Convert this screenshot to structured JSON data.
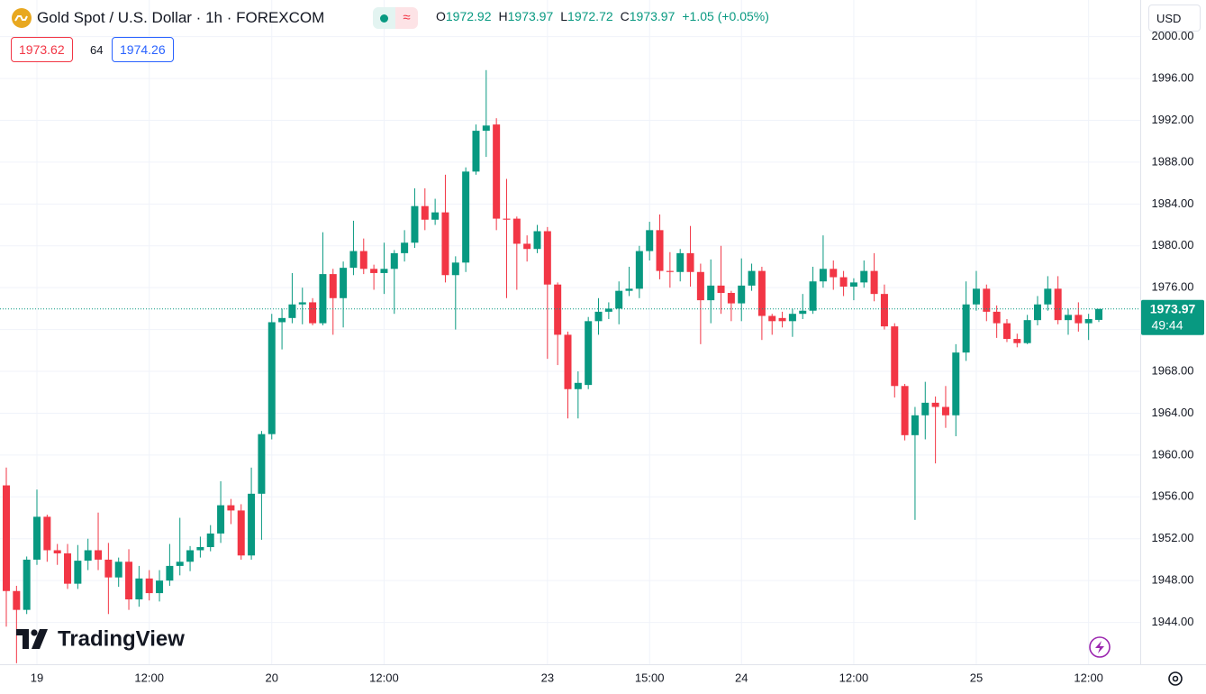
{
  "header": {
    "symbol": "Gold Spot / U.S. Dollar · 1h · FOREXCOM",
    "ohlc": {
      "open_label": "O",
      "open": "1972.92",
      "high_label": "H",
      "high": "1973.97",
      "low_label": "L",
      "low": "1972.72",
      "close_label": "C",
      "close": "1973.97",
      "change": "+1.05 (+0.05%)"
    },
    "bid": "1973.62",
    "spread": "64",
    "ask": "1974.26",
    "currency": "USD"
  },
  "chart_data": {
    "type": "candlestick",
    "up_color": "#089981",
    "down_color": "#f23645",
    "categories": [
      null,
      null,
      null,
      "19",
      null,
      null,
      null,
      null,
      null,
      null,
      null,
      null,
      null,
      null,
      "12:00",
      null,
      null,
      null,
      null,
      null,
      null,
      null,
      null,
      null,
      null,
      null,
      "20",
      null,
      null,
      null,
      null,
      null,
      null,
      null,
      null,
      null,
      null,
      "12:00",
      null,
      null,
      null,
      null,
      null,
      null,
      null,
      null,
      null,
      null,
      null,
      null,
      null,
      null,
      null,
      "23",
      null,
      null,
      null,
      null,
      null,
      null,
      null,
      null,
      null,
      "15:00",
      null,
      null,
      null,
      null,
      null,
      null,
      null,
      null,
      "24",
      null,
      null,
      null,
      null,
      null,
      null,
      null,
      null,
      null,
      null,
      "12:00",
      null,
      null,
      null,
      null,
      null,
      null,
      null,
      null,
      null,
      null,
      null,
      "25",
      null,
      null,
      null,
      null,
      null,
      null,
      null,
      null,
      null,
      null,
      "12:00",
      null
    ],
    "open": [
      1957.1,
      1947.0,
      1945.2,
      1950.0,
      1954.1,
      1950.9,
      1950.6,
      1947.7,
      1949.9,
      1950.9,
      1950.0,
      1948.3,
      1949.8,
      1946.2,
      1948.2,
      1946.8,
      1948.0,
      1949.4,
      1949.8,
      1950.9,
      1951.2,
      1952.5,
      1955.2,
      1954.7,
      1950.4,
      1956.3,
      1962.0,
      1972.7,
      1973.1,
      1974.4,
      1974.6,
      1972.6,
      1977.3,
      1975.0,
      1977.9,
      1979.5,
      1977.8,
      1977.4,
      1977.8,
      1979.3,
      1980.3,
      1983.8,
      1982.5,
      1983.2,
      1977.2,
      1978.4,
      1987.1,
      1991.0,
      1991.6,
      1982.6,
      1982.6,
      1980.2,
      1979.7,
      1981.4,
      1976.3,
      1971.5,
      1966.3,
      1966.7,
      1972.8,
      1973.7,
      1974.0,
      1975.7,
      1975.9,
      1979.5,
      1981.5,
      1977.6,
      1977.5,
      1979.3,
      1977.5,
      1974.8,
      1976.2,
      1975.5,
      1974.5,
      1976.2,
      1977.6,
      1973.3,
      1973.1,
      1972.8,
      1973.5,
      1973.8,
      1976.6,
      1977.8,
      1977.0,
      1976.1,
      1976.5,
      1977.6,
      1975.4,
      1972.3,
      1966.6,
      1961.9,
      1963.8,
      1965.0,
      1964.6,
      1963.8,
      1969.8,
      1974.4,
      1975.9,
      1973.7,
      1972.6,
      1971.1,
      1970.7,
      1972.9,
      1974.4,
      1975.9,
      1972.9,
      1973.4,
      1972.6,
      1972.92
    ],
    "high": [
      1958.8,
      1947.5,
      1950.3,
      1956.7,
      1954.3,
      1951.5,
      1951.5,
      1951.4,
      1952.0,
      1954.5,
      1951.6,
      1950.2,
      1951.0,
      1949.4,
      1949.0,
      1949.0,
      1951.5,
      1954.0,
      1951.3,
      1952.2,
      1953.3,
      1957.5,
      1955.8,
      1955.3,
      1958.8,
      1962.3,
      1973.5,
      1974.0,
      1977.4,
      1976.0,
      1975.0,
      1981.3,
      1977.8,
      1978.5,
      1982.4,
      1980.7,
      1978.2,
      1980.3,
      1979.6,
      1981.5,
      1985.5,
      1985.5,
      1984.5,
      1986.8,
      1979.0,
      1987.5,
      1991.6,
      1996.8,
      1992.2,
      1986.4,
      1982.8,
      1981.0,
      1982.0,
      1981.8,
      1976.5,
      1971.8,
      1968.0,
      1973.2,
      1975.0,
      1974.6,
      1976.6,
      1978.0,
      1980.0,
      1982.3,
      1983.0,
      1979.4,
      1979.7,
      1981.9,
      1978.3,
      1978.7,
      1980.0,
      1975.7,
      1978.8,
      1978.3,
      1978.0,
      1973.5,
      1973.7,
      1974.0,
      1975.4,
      1978.0,
      1981.0,
      1978.6,
      1977.6,
      1976.9,
      1978.6,
      1979.3,
      1976.3,
      1972.6,
      1966.8,
      1964.6,
      1967.0,
      1965.6,
      1966.6,
      1970.6,
      1976.6,
      1977.6,
      1976.3,
      1974.3,
      1973.0,
      1971.6,
      1973.4,
      1975.2,
      1977.1,
      1977.1,
      1974.0,
      1974.6,
      1973.5,
      1973.97
    ],
    "low": [
      1943.6,
      1940.1,
      1944.8,
      1949.5,
      1949.8,
      1949.5,
      1947.2,
      1947.2,
      1949.0,
      1949.0,
      1944.8,
      1947.4,
      1945.2,
      1945.5,
      1946.1,
      1946.0,
      1947.5,
      1948.5,
      1948.9,
      1950.2,
      1950.8,
      1951.6,
      1953.4,
      1950.0,
      1950.0,
      1951.9,
      1961.5,
      1970.1,
      1972.6,
      1972.5,
      1972.4,
      1972.4,
      1971.5,
      1972.2,
      1977.2,
      1977.3,
      1975.8,
      1975.4,
      1973.5,
      1978.5,
      1979.8,
      1981.5,
      1982.0,
      1976.5,
      1972.0,
      1977.5,
      1986.8,
      1988.5,
      1981.5,
      1975.0,
      1975.8,
      1978.5,
      1979.3,
      1969.2,
      1968.6,
      1963.5,
      1963.5,
      1966.3,
      1971.5,
      1973.0,
      1972.5,
      1975.2,
      1975.0,
      1978.6,
      1976.8,
      1976.0,
      1976.6,
      1976.1,
      1970.6,
      1972.6,
      1973.5,
      1972.8,
      1972.8,
      1975.7,
      1971.0,
      1971.5,
      1972.2,
      1971.3,
      1973.0,
      1973.5,
      1976.0,
      1975.8,
      1975.2,
      1974.8,
      1976.0,
      1974.7,
      1972.0,
      1965.5,
      1961.4,
      1953.8,
      1961.5,
      1959.2,
      1962.6,
      1961.8,
      1969.0,
      1973.8,
      1972.8,
      1971.2,
      1970.8,
      1970.3,
      1970.6,
      1972.4,
      1973.8,
      1972.5,
      1971.5,
      1971.8,
      1971.0,
      1972.72
    ],
    "close": [
      1947.0,
      1945.2,
      1950.0,
      1954.1,
      1950.9,
      1950.6,
      1947.7,
      1949.9,
      1950.9,
      1950.0,
      1948.3,
      1949.8,
      1946.2,
      1948.2,
      1946.8,
      1948.0,
      1949.4,
      1949.8,
      1950.9,
      1951.2,
      1952.5,
      1955.2,
      1954.7,
      1950.4,
      1956.3,
      1962.0,
      1972.7,
      1973.1,
      1974.4,
      1974.6,
      1972.6,
      1977.3,
      1975.0,
      1977.9,
      1979.5,
      1977.8,
      1977.4,
      1977.8,
      1979.3,
      1980.3,
      1983.8,
      1982.5,
      1983.2,
      1977.2,
      1978.4,
      1987.1,
      1991.0,
      1991.5,
      1982.6,
      1982.5,
      1980.2,
      1979.7,
      1981.4,
      1976.3,
      1971.5,
      1966.3,
      1966.9,
      1972.8,
      1973.7,
      1974.0,
      1975.7,
      1975.9,
      1979.5,
      1981.5,
      1977.6,
      1977.5,
      1979.3,
      1977.5,
      1974.8,
      1976.2,
      1975.5,
      1974.5,
      1976.2,
      1977.6,
      1973.3,
      1972.8,
      1972.8,
      1973.5,
      1973.8,
      1976.6,
      1977.8,
      1977.0,
      1976.1,
      1976.5,
      1977.6,
      1975.4,
      1972.3,
      1966.6,
      1961.9,
      1963.8,
      1965.0,
      1964.6,
      1963.8,
      1969.8,
      1974.4,
      1975.9,
      1973.7,
      1972.6,
      1971.1,
      1970.7,
      1972.9,
      1974.4,
      1975.9,
      1972.9,
      1973.4,
      1972.6,
      1973.0,
      1973.97
    ],
    "ylim": [
      1940,
      2000.4
    ],
    "yticks": [
      {
        "value": 1944,
        "label": "1944.00"
      },
      {
        "value": 1948,
        "label": "1948.00"
      },
      {
        "value": 1952,
        "label": "1952.00"
      },
      {
        "value": 1956,
        "label": "1956.00"
      },
      {
        "value": 1960,
        "label": "1960.00"
      },
      {
        "value": 1964,
        "label": "1964.00"
      },
      {
        "value": 1968,
        "label": "1968.00"
      },
      {
        "value": 1972,
        "label": "1972.00"
      },
      {
        "value": 1976,
        "label": "1976.00"
      },
      {
        "value": 1980,
        "label": "1980.00"
      },
      {
        "value": 1984,
        "label": "1984.00"
      },
      {
        "value": 1988,
        "label": "1988.00"
      },
      {
        "value": 1992,
        "label": "1992.00"
      },
      {
        "value": 1996,
        "label": "1996.00"
      },
      {
        "value": 2000,
        "label": "2000.00"
      }
    ],
    "grid": true,
    "last_price": {
      "value": 1973.97,
      "label": "1973.97",
      "countdown": "49:44"
    }
  },
  "watermark": "TradingView"
}
